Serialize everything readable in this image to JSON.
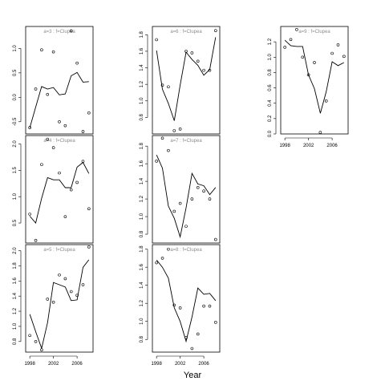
{
  "figure": {
    "xlabel": "Year"
  },
  "chart_data": [
    {
      "type": "line",
      "title": "a=3 : f=Clupea",
      "x": [
        1998,
        1999,
        2000,
        2001,
        2002,
        2003,
        2004,
        2005,
        2006,
        2007,
        2008
      ],
      "series": [
        {
          "kind": "line",
          "values": [
            -0.62,
            -0.2,
            0.22,
            0.17,
            0.2,
            0.05,
            0.07,
            0.44,
            0.51,
            0.31,
            0.32
          ]
        },
        {
          "kind": "points",
          "values": [
            -0.62,
            0.17,
            0.97,
            0.06,
            0.93,
            -0.5,
            -0.58,
            1.36,
            0.7,
            -0.7,
            -0.32
          ]
        }
      ],
      "ylim": [
        -0.75,
        1.45
      ],
      "yticks": [
        -0.5,
        0.0,
        0.5,
        1.0
      ],
      "ytick_labels": [
        "-0.5",
        "0.0",
        "0.5",
        "1.0"
      ],
      "xlim": [
        1997.3,
        2008.7
      ],
      "xticks": [
        1998,
        2002,
        2006
      ],
      "xtick_labels": [],
      "ylabel": ""
    },
    {
      "type": "line",
      "title": "a=6 : f=Clupea",
      "x": [
        1998,
        1999,
        2000,
        2001,
        2002,
        2003,
        2004,
        2005,
        2006,
        2007,
        2008
      ],
      "series": [
        {
          "kind": "line",
          "values": [
            1.61,
            1.14,
            0.97,
            0.76,
            1.19,
            1.59,
            1.5,
            1.43,
            1.31,
            1.38,
            1.77
          ]
        },
        {
          "kind": "points",
          "values": [
            1.74,
            1.19,
            1.17,
            0.64,
            0.66,
            1.6,
            1.58,
            1.48,
            1.37,
            1.37,
            1.85
          ]
        }
      ],
      "ylim": [
        0.6,
        1.9
      ],
      "yticks": [
        0.8,
        1.0,
        1.2,
        1.4,
        1.6,
        1.8
      ],
      "ytick_labels": [
        "0.8",
        "1.0",
        "1.2",
        "1.4",
        "1.6",
        "1.8"
      ],
      "xlim": [
        1997.3,
        2008.7
      ],
      "xticks": [
        1998,
        2002,
        2006
      ],
      "xtick_labels": [],
      "ylabel": ""
    },
    {
      "type": "line",
      "title": "a=9 : f=Clupea",
      "x": [
        1998,
        1999,
        2000,
        2001,
        2002,
        2003,
        2004,
        2005,
        2006,
        2007,
        2008
      ],
      "series": [
        {
          "kind": "line",
          "values": [
            1.22,
            1.15,
            1.14,
            1.14,
            0.77,
            0.59,
            0.27,
            0.55,
            0.94,
            0.89,
            0.93
          ]
        },
        {
          "kind": "points",
          "values": [
            1.13,
            1.23,
            1.36,
            1.0,
            0.77,
            0.93,
            0.02,
            0.43,
            1.05,
            1.16,
            1.01
          ]
        }
      ],
      "ylim": [
        0.0,
        1.4
      ],
      "yticks": [
        0.0,
        0.2,
        0.4,
        0.6,
        0.8,
        1.0,
        1.2
      ],
      "ytick_labels": [
        "0.0",
        "0.2",
        "0.4",
        "0.6",
        "0.8",
        "1.0",
        "1.2"
      ],
      "xlim": [
        1997.3,
        2008.7
      ],
      "xticks": [
        1998,
        2002,
        2006
      ],
      "xtick_labels": [
        "1998",
        "2002",
        "2006"
      ],
      "ylabel": ""
    },
    {
      "type": "line",
      "title": "a=4 : f=Clupea",
      "x": [
        1998,
        1999,
        2000,
        2001,
        2002,
        2003,
        2004,
        2005,
        2006,
        2007,
        2008
      ],
      "series": [
        {
          "kind": "line",
          "values": [
            0.63,
            0.5,
            0.97,
            1.36,
            1.32,
            1.32,
            1.17,
            1.17,
            1.56,
            1.65,
            1.44
          ]
        },
        {
          "kind": "points",
          "values": [
            0.67,
            0.17,
            1.61,
            2.09,
            1.93,
            1.45,
            0.62,
            1.13,
            1.27,
            1.67,
            0.77
          ]
        }
      ],
      "ylim": [
        0.12,
        2.16
      ],
      "yticks": [
        0.5,
        1.0,
        1.5,
        2.0
      ],
      "ytick_labels": [
        "0.5",
        "1.0",
        "1.5",
        "2.0"
      ],
      "xlim": [
        1997.3,
        2008.7
      ],
      "xticks": [
        1998,
        2002,
        2006
      ],
      "xtick_labels": [],
      "ylabel": ""
    },
    {
      "type": "line",
      "title": "a=7 : f=Clupea",
      "x": [
        1998,
        1999,
        2000,
        2001,
        2002,
        2003,
        2004,
        2005,
        2006,
        2007,
        2008
      ],
      "series": [
        {
          "kind": "line",
          "values": [
            1.7,
            1.55,
            1.12,
            0.98,
            0.77,
            1.1,
            1.49,
            1.37,
            1.35,
            1.25,
            1.33
          ]
        },
        {
          "kind": "points",
          "values": [
            1.63,
            1.89,
            1.75,
            1.06,
            1.15,
            0.89,
            1.2,
            1.33,
            1.29,
            1.2,
            0.74
          ]
        }
      ],
      "ylim": [
        0.7,
        1.92
      ],
      "yticks": [
        0.8,
        1.0,
        1.2,
        1.4,
        1.6,
        1.8
      ],
      "ytick_labels": [
        "0.8",
        "1.0",
        "1.2",
        "1.4",
        "1.6",
        "1.8"
      ],
      "xlim": [
        1997.3,
        2008.7
      ],
      "xticks": [
        1998,
        2002,
        2006
      ],
      "xtick_labels": [],
      "ylabel": ""
    },
    {
      "type": "line",
      "title": "a=5 : f=Clupea",
      "x": [
        1998,
        1999,
        2000,
        2001,
        2002,
        2003,
        2004,
        2005,
        2006,
        2007,
        2008
      ],
      "series": [
        {
          "kind": "line",
          "values": [
            1.16,
            0.93,
            0.71,
            1.05,
            1.58,
            1.55,
            1.52,
            1.34,
            1.35,
            1.78,
            1.88
          ]
        },
        {
          "kind": "points",
          "values": [
            0.88,
            0.8,
            0.69,
            1.36,
            1.32,
            1.68,
            1.63,
            1.46,
            1.41,
            1.55,
            2.05
          ]
        }
      ],
      "ylim": [
        0.66,
        2.08
      ],
      "yticks": [
        0.8,
        1.0,
        1.2,
        1.4,
        1.6,
        1.8,
        2.0
      ],
      "ytick_labels": [
        "0.8",
        "1.0",
        "1.2",
        "1.4",
        "1.6",
        "1.8",
        "2.0"
      ],
      "xlim": [
        1997.3,
        2008.7
      ],
      "xticks": [
        1998,
        2002,
        2006
      ],
      "xtick_labels": [
        "1998",
        "2002",
        "2006"
      ],
      "ylabel": ""
    },
    {
      "type": "line",
      "title": "a=8 : f=Clupea",
      "x": [
        1998,
        1999,
        2000,
        2001,
        2002,
        2003,
        2004,
        2005,
        2006,
        2007,
        2008
      ],
      "series": [
        {
          "kind": "line",
          "values": [
            1.68,
            1.6,
            1.48,
            1.15,
            1.0,
            0.78,
            1.05,
            1.37,
            1.3,
            1.31,
            1.23
          ]
        },
        {
          "kind": "points",
          "values": [
            1.65,
            1.7,
            1.8,
            1.18,
            1.15,
            0.82,
            0.7,
            0.86,
            1.17,
            1.17,
            0.99
          ]
        }
      ],
      "ylim": [
        0.66,
        1.85
      ],
      "yticks": [
        0.8,
        1.0,
        1.2,
        1.4,
        1.6,
        1.8
      ],
      "ytick_labels": [
        "0.8",
        "1.0",
        "1.2",
        "1.4",
        "1.6",
        "1.8"
      ],
      "xlim": [
        1997.3,
        2008.7
      ],
      "xticks": [
        1998,
        2002,
        2006
      ],
      "xtick_labels": [
        "1998",
        "2002",
        "2006"
      ],
      "ylabel": ""
    }
  ]
}
